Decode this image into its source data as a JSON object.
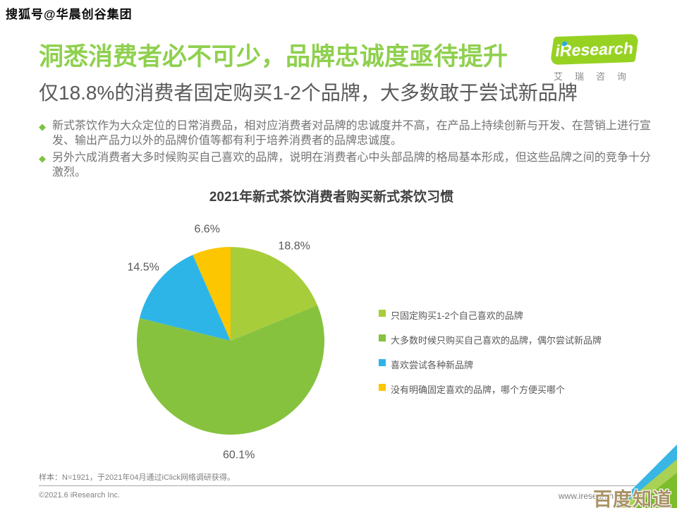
{
  "watermark_top": "搜狐号@华晨创谷集团",
  "header": {
    "title": "洞悉消费者必不可少，品牌忠诚度亟待提升",
    "subtitle": "仅18.8%的消费者固定购买1-2个品牌，大多数敢于尝试新品牌",
    "logo": {
      "i_letter": "i",
      "name": "Research",
      "caption": "艾瑞咨询"
    }
  },
  "bullet_icon": "◆",
  "bullets": [
    "新式茶饮作为大众定位的日常消费品，相对应消费者对品牌的忠诚度并不高，在产品上持续创新与开发、在营销上进行宣发、输出产品力以外的品牌价值等都有利于培养消费者的品牌忠诚度。",
    "另外六成消费者大多时候购买自己喜欢的品牌，说明在消费者心中头部品牌的格局基本形成，但这些品牌之间的竞争十分激烈。"
  ],
  "chart_data": {
    "type": "pie",
    "title": "2021年新式茶饮消费者购买新式茶饮习惯",
    "start_angle_deg": 0,
    "direction": "clockwise",
    "legend_position": "right",
    "value_suffix": "%",
    "slices": [
      {
        "label": "只固定购买1-2个自己喜欢的品牌",
        "value": 18.8,
        "color": "#a8cd3a"
      },
      {
        "label": "大多数时候只购买自己喜欢的品牌，偶尔尝试新品牌",
        "value": 60.1,
        "color": "#87c23f"
      },
      {
        "label": "喜欢尝试各种新品牌",
        "value": 14.5,
        "color": "#2db5e8"
      },
      {
        "label": "没有明确固定喜欢的品牌，哪个方便买哪个",
        "value": 6.6,
        "color": "#fcc600"
      }
    ]
  },
  "footer": {
    "sample_note": "样本：N=1921，于2021年04月通过iClick网络调研获得。",
    "copyright": "©2021.6 iResearch Inc.",
    "website": "www.iresearch.c",
    "watermark": "百度知道"
  },
  "colors": {
    "title_green": "#8fd04e",
    "accent_green": "#7fc241",
    "text_dark": "#404040",
    "text_gray": "#595959",
    "text_light": "#808080",
    "logo_green": "#97d223",
    "logo_dot_blue": "#2ba9e0",
    "baidu_tan": "#a99467",
    "corner_cyan": "#38b6e6",
    "corner_light_green": "#a8d155",
    "corner_green": "#7bbd2a"
  }
}
